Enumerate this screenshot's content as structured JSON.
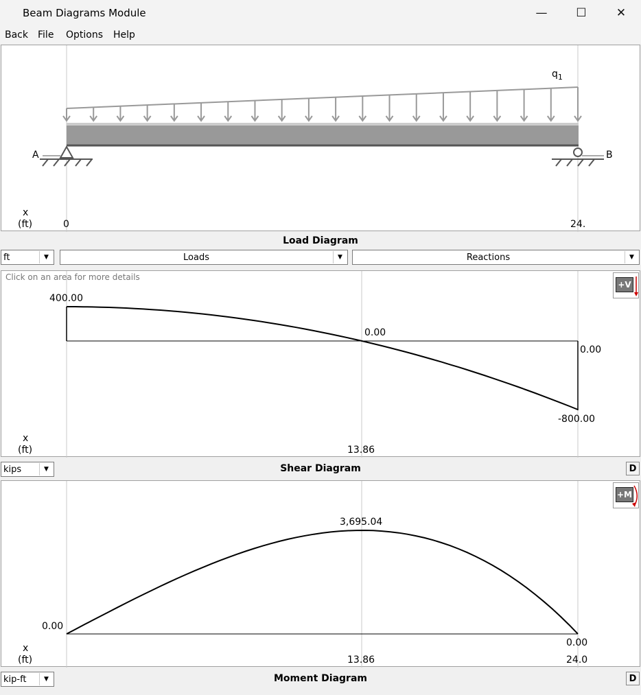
{
  "window": {
    "title": "Beam Diagrams Module",
    "minimize_glyph": "—",
    "maximize_glyph": "☐",
    "close_glyph": "✕"
  },
  "menu": [
    "Back",
    "File",
    "Options",
    "Help"
  ],
  "load_diagram": {
    "caption": "Load Diagram",
    "load_label": "q",
    "load_label_sub": "1",
    "support_a": "A",
    "support_b": "B",
    "x_label": "x",
    "x_unit": "(ft)",
    "x_start": "0",
    "x_end": "24."
  },
  "controls": {
    "length_unit": "ft",
    "loads": "Loads",
    "reactions": "Reactions"
  },
  "shear_diagram": {
    "caption": "Shear Diagram",
    "hint": "Click on an area for more details",
    "unit": "kips",
    "sign_button": "+V",
    "detail_button": "D",
    "x_label": "x",
    "x_unit": "(ft)",
    "max_label": "400.00",
    "zero_label": "0.00",
    "end_zero_label": "0.00",
    "min_label": "-800.00",
    "zero_x_label": "13.86"
  },
  "moment_diagram": {
    "caption": "Moment Diagram",
    "unit": "kip-ft",
    "sign_button": "+M",
    "detail_button": "D",
    "x_label": "x",
    "x_unit": "(ft)",
    "start_label": "0.00",
    "max_label": "3,695.04",
    "end_label": "0.00",
    "max_x_label": "13.86",
    "end_x_label": "24.0"
  },
  "chart_data": [
    {
      "type": "line",
      "title": "Shear Diagram",
      "x_range": [
        0,
        24
      ],
      "y_range": [
        -800,
        400
      ],
      "points": [
        [
          0,
          400
        ],
        [
          13.86,
          0
        ],
        [
          24,
          -800
        ],
        [
          24,
          0
        ]
      ]
    },
    {
      "type": "line",
      "title": "Moment Diagram",
      "x_range": [
        0,
        24
      ],
      "y_range": [
        0,
        3695.04
      ],
      "points": [
        [
          0,
          0
        ],
        [
          13.86,
          3695.04
        ],
        [
          24,
          0
        ]
      ]
    }
  ]
}
